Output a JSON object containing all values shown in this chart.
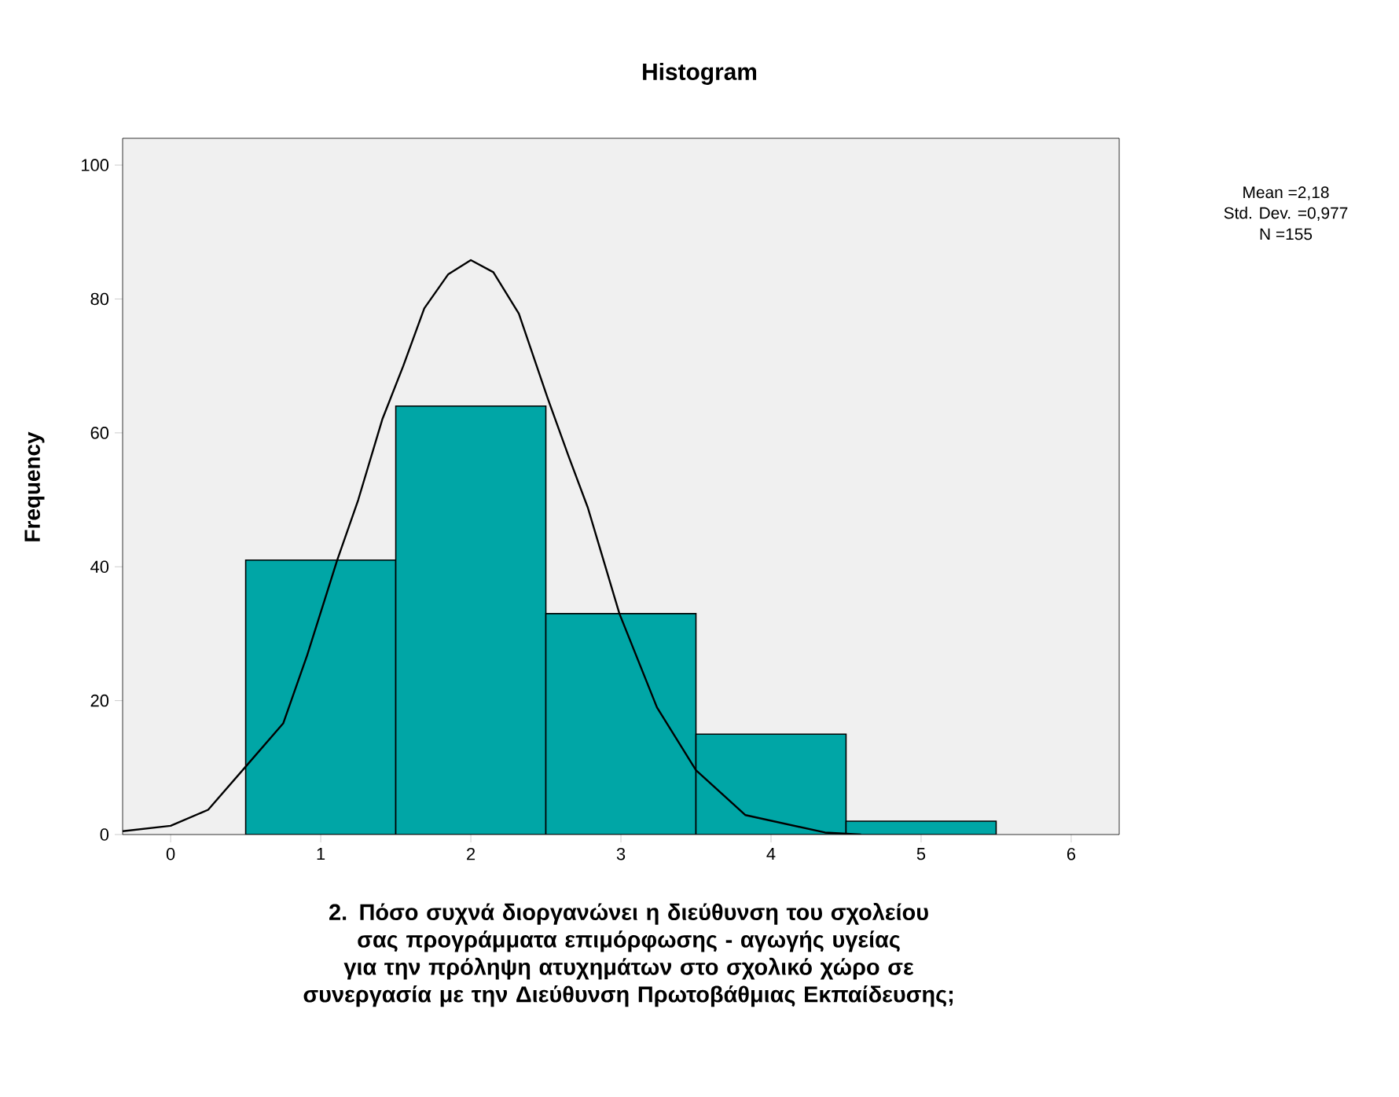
{
  "chart_data": {
    "type": "histogram",
    "title": "Histogram",
    "xlabel": "2. Πόσο συχνά διοργανώνει η διεύθυνση του σχολείου σας προγράμματα επιμόρφωσης - αγωγής υγείας  για την πρόληψη ατυχημάτων στο σχολικό χώρο σε συνεργασία με την Διεύθυνση Πρωτοβάθμιας Εκπαίδευσης;",
    "ylabel": "Frequency",
    "annotations": [
      "Mean =2,18",
      "Std. Dev. =0,977",
      "N =155"
    ],
    "bins": [
      0.5,
      1.5,
      2.5,
      3.5,
      4.5,
      5.5
    ],
    "series": [
      {
        "color": "#00a6a6",
        "values": [
          41,
          64,
          33,
          15,
          2
        ]
      },
      {
        "type": "line",
        "color": "#000000",
        "x": [
          -0.32,
          0,
          0.25,
          0.51,
          0.75,
          0.91,
          1.11,
          1.25,
          1.41,
          1.55,
          1.69,
          1.85,
          2.0,
          2.15,
          2.32,
          2.51,
          2.65,
          2.78,
          2.99,
          3.24,
          3.5,
          3.83,
          4.36,
          4.6
        ],
        "values": [
          0.5,
          1.3,
          3.7,
          10.4,
          16.6,
          26.8,
          41,
          50,
          62,
          70,
          78.6,
          83.7,
          85.8,
          84,
          77.8,
          65.3,
          56.6,
          48.8,
          33,
          19,
          9.6,
          2.9,
          0.3,
          0
        ]
      }
    ],
    "xlim": [
      -0.32,
      6.32
    ],
    "ylim": [
      0,
      104
    ],
    "xticks": [
      0,
      1,
      2,
      3,
      4,
      5,
      6
    ],
    "yticks": [
      0,
      20,
      40,
      60,
      80,
      100
    ]
  }
}
